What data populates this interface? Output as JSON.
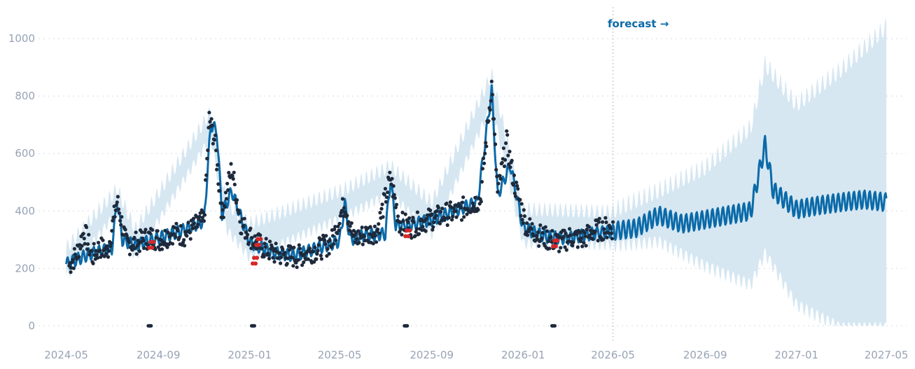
{
  "chart_data": {
    "type": "line",
    "title": "",
    "xlabel": "",
    "ylabel": "",
    "ylim": [
      -60,
      1110
    ],
    "xlim": [
      "2024-03-25",
      "2027-05-28"
    ],
    "x_tick_labels": [
      "2024-05",
      "2024-09",
      "2025-01",
      "2025-05",
      "2025-09",
      "2026-01",
      "2026-05",
      "2026-09",
      "2027-01",
      "2027-05"
    ],
    "y_tick_labels": [
      "0",
      "200",
      "400",
      "600",
      "800",
      "1000"
    ],
    "y_ticks": [
      0,
      200,
      400,
      600,
      800,
      1000
    ],
    "grid": true,
    "forecast_start": "2026-05-01",
    "forecast_annotation": "forecast →",
    "colors": {
      "trend_line": "#0b6aa8",
      "uncertainty_band": "#d6e7f2",
      "observed_points": "#1e2a3b",
      "anomaly_points": "#d62728",
      "forecast_marker": "#b7bdd2",
      "changepoint_marks": "#1e2a3b"
    },
    "series": [
      {
        "kind": "forecast_trend",
        "points": [
          [
            "2024-05-01",
            215
          ],
          [
            "2024-06-01",
            250
          ],
          [
            "2024-07-01",
            270
          ],
          [
            "2024-07-08",
            435
          ],
          [
            "2024-07-15",
            300
          ],
          [
            "2024-08-01",
            280
          ],
          [
            "2024-09-01",
            305
          ],
          [
            "2024-10-01",
            330
          ],
          [
            "2024-11-01",
            365
          ],
          [
            "2024-11-10",
            700
          ],
          [
            "2024-11-18",
            680
          ],
          [
            "2024-11-25",
            390
          ],
          [
            "2024-12-08",
            470
          ],
          [
            "2024-12-20",
            380
          ],
          [
            "2025-01-01",
            290
          ],
          [
            "2025-02-01",
            255
          ],
          [
            "2025-03-01",
            245
          ],
          [
            "2025-04-01",
            270
          ],
          [
            "2025-05-01",
            295
          ],
          [
            "2025-05-08",
            425
          ],
          [
            "2025-05-15",
            300
          ],
          [
            "2025-06-01",
            315
          ],
          [
            "2025-07-01",
            320
          ],
          [
            "2025-07-08",
            510
          ],
          [
            "2025-07-15",
            350
          ],
          [
            "2025-08-01",
            350
          ],
          [
            "2025-09-01",
            370
          ],
          [
            "2025-10-01",
            400
          ],
          [
            "2025-11-01",
            430
          ],
          [
            "2025-11-20",
            820
          ],
          [
            "2025-11-28",
            455
          ],
          [
            "2025-12-15",
            560
          ],
          [
            "2026-01-01",
            340
          ],
          [
            "2026-02-01",
            310
          ],
          [
            "2026-03-01",
            305
          ],
          [
            "2026-04-01",
            320
          ],
          [
            "2026-05-01",
            330
          ],
          [
            "2026-06-01",
            340
          ],
          [
            "2026-07-01",
            385
          ],
          [
            "2026-08-01",
            355
          ],
          [
            "2026-09-01",
            370
          ],
          [
            "2026-10-01",
            385
          ],
          [
            "2026-11-01",
            400
          ],
          [
            "2026-11-20",
            630
          ],
          [
            "2026-12-01",
            470
          ],
          [
            "2027-01-01",
            405
          ],
          [
            "2027-02-01",
            420
          ],
          [
            "2027-03-01",
            430
          ],
          [
            "2027-04-01",
            440
          ],
          [
            "2027-05-01",
            430
          ]
        ]
      },
      {
        "kind": "uncertainty_upper",
        "points": [
          [
            "2024-05-01",
            265
          ],
          [
            "2024-07-08",
            470
          ],
          [
            "2024-08-01",
            330
          ],
          [
            "2024-11-10",
            740
          ],
          [
            "2024-12-01",
            420
          ],
          [
            "2025-01-01",
            350
          ],
          [
            "2025-05-08",
            470
          ],
          [
            "2025-07-08",
            550
          ],
          [
            "2025-09-01",
            425
          ],
          [
            "2025-11-20",
            870
          ],
          [
            "2026-01-01",
            400
          ],
          [
            "2026-05-01",
            390
          ],
          [
            "2026-07-01",
            460
          ],
          [
            "2026-09-01",
            540
          ],
          [
            "2026-11-01",
            680
          ],
          [
            "2026-11-20",
            900
          ],
          [
            "2027-01-01",
            760
          ],
          [
            "2027-03-01",
            880
          ],
          [
            "2027-05-01",
            1030
          ]
        ]
      },
      {
        "kind": "uncertainty_lower",
        "points": [
          [
            "2024-05-01",
            175
          ],
          [
            "2024-07-08",
            400
          ],
          [
            "2024-08-01",
            240
          ],
          [
            "2024-11-10",
            660
          ],
          [
            "2024-12-01",
            340
          ],
          [
            "2025-01-01",
            240
          ],
          [
            "2025-05-08",
            385
          ],
          [
            "2025-07-08",
            465
          ],
          [
            "2025-09-01",
            320
          ],
          [
            "2025-11-20",
            770
          ],
          [
            "2026-01-01",
            290
          ],
          [
            "2026-05-01",
            285
          ],
          [
            "2026-07-01",
            300
          ],
          [
            "2026-09-01",
            215
          ],
          [
            "2026-11-01",
            150
          ],
          [
            "2026-11-20",
            260
          ],
          [
            "2027-01-01",
            80
          ],
          [
            "2027-03-01",
            0
          ],
          [
            "2027-05-01",
            0
          ]
        ]
      },
      {
        "kind": "observed",
        "points": [
          [
            "2024-05-05",
            210
          ],
          [
            "2024-05-15",
            250
          ],
          [
            "2024-05-25",
            330
          ],
          [
            "2024-06-05",
            240
          ],
          [
            "2024-06-15",
            275
          ],
          [
            "2024-06-25",
            255
          ],
          [
            "2024-07-08",
            435
          ],
          [
            "2024-07-20",
            285
          ],
          [
            "2024-08-05",
            290
          ],
          [
            "2024-08-20",
            310
          ],
          [
            "2024-09-05",
            300
          ],
          [
            "2024-09-20",
            325
          ],
          [
            "2024-10-05",
            315
          ],
          [
            "2024-10-20",
            345
          ],
          [
            "2024-11-01",
            370
          ],
          [
            "2024-11-08",
            720
          ],
          [
            "2024-11-15",
            650
          ],
          [
            "2024-11-25",
            390
          ],
          [
            "2024-12-08",
            550
          ],
          [
            "2024-12-20",
            360
          ],
          [
            "2025-01-05",
            300
          ],
          [
            "2025-01-20",
            270
          ],
          [
            "2025-02-05",
            250
          ],
          [
            "2025-02-20",
            245
          ],
          [
            "2025-03-05",
            240
          ],
          [
            "2025-03-20",
            255
          ],
          [
            "2025-04-05",
            270
          ],
          [
            "2025-04-20",
            290
          ],
          [
            "2025-05-08",
            430
          ],
          [
            "2025-05-20",
            300
          ],
          [
            "2025-06-05",
            320
          ],
          [
            "2025-06-20",
            330
          ],
          [
            "2025-07-08",
            515
          ],
          [
            "2025-07-20",
            360
          ],
          [
            "2025-08-05",
            345
          ],
          [
            "2025-08-20",
            365
          ],
          [
            "2025-09-05",
            375
          ],
          [
            "2025-09-20",
            390
          ],
          [
            "2025-10-05",
            395
          ],
          [
            "2025-10-20",
            420
          ],
          [
            "2025-11-05",
            440
          ],
          [
            "2025-11-20",
            840
          ],
          [
            "2025-11-28",
            460
          ],
          [
            "2025-12-10",
            640
          ],
          [
            "2025-12-20",
            500
          ],
          [
            "2026-01-05",
            350
          ],
          [
            "2026-01-20",
            320
          ],
          [
            "2026-02-05",
            300
          ],
          [
            "2026-02-20",
            290
          ],
          [
            "2026-03-05",
            310
          ],
          [
            "2026-03-20",
            300
          ],
          [
            "2026-04-05",
            330
          ],
          [
            "2026-04-20",
            340
          ]
        ]
      },
      {
        "kind": "anomalies",
        "points": [
          [
            "2024-08-20",
            280
          ],
          [
            "2025-01-05",
            225
          ],
          [
            "2025-01-10",
            290
          ],
          [
            "2025-07-28",
            320
          ],
          [
            "2026-02-10",
            285
          ]
        ]
      }
    ],
    "changepoint_markers": [
      "2024-08-20",
      "2025-01-05",
      "2025-07-28",
      "2026-02-10"
    ]
  }
}
